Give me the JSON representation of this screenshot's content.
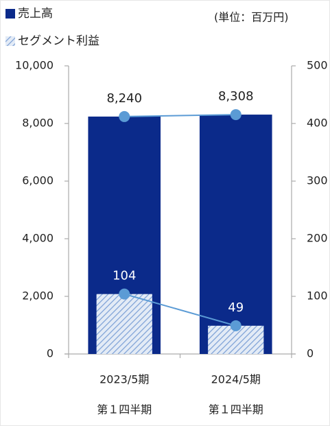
{
  "chart_data": {
    "type": "bar",
    "unit_note": "(単位：百万円)",
    "categories": [
      [
        "2023/5期",
        "第１四半期"
      ],
      [
        "2024/5期",
        "第１四半期"
      ]
    ],
    "series": [
      {
        "name": "売上高",
        "color": "#0b2a8a",
        "marker_color": "#5b9bd5",
        "values": [
          8240,
          8308
        ],
        "value_labels": [
          "8,240",
          "8,308"
        ]
      },
      {
        "name": "セグメント利益",
        "color": "#7da1d6",
        "hatch": true,
        "marker_color": "#5b9bd5",
        "axis": "y2",
        "values": [
          104,
          49
        ]
      }
    ],
    "ylim": [
      0,
      10000
    ],
    "yticks": [
      0,
      {
        "value": 2000,
        "label": "2,000"
      },
      {
        "value": 4000,
        "label": "4,000"
      },
      {
        "value": 6000,
        "label": "6,000"
      },
      {
        "value": 8000,
        "label": "8,000"
      },
      {
        "value": 10000,
        "label": "10,000"
      }
    ],
    "y2lim": [
      0,
      500
    ],
    "y2ticks": [
      0,
      100,
      200,
      300,
      400,
      500
    ],
    "legend": "top-left"
  }
}
